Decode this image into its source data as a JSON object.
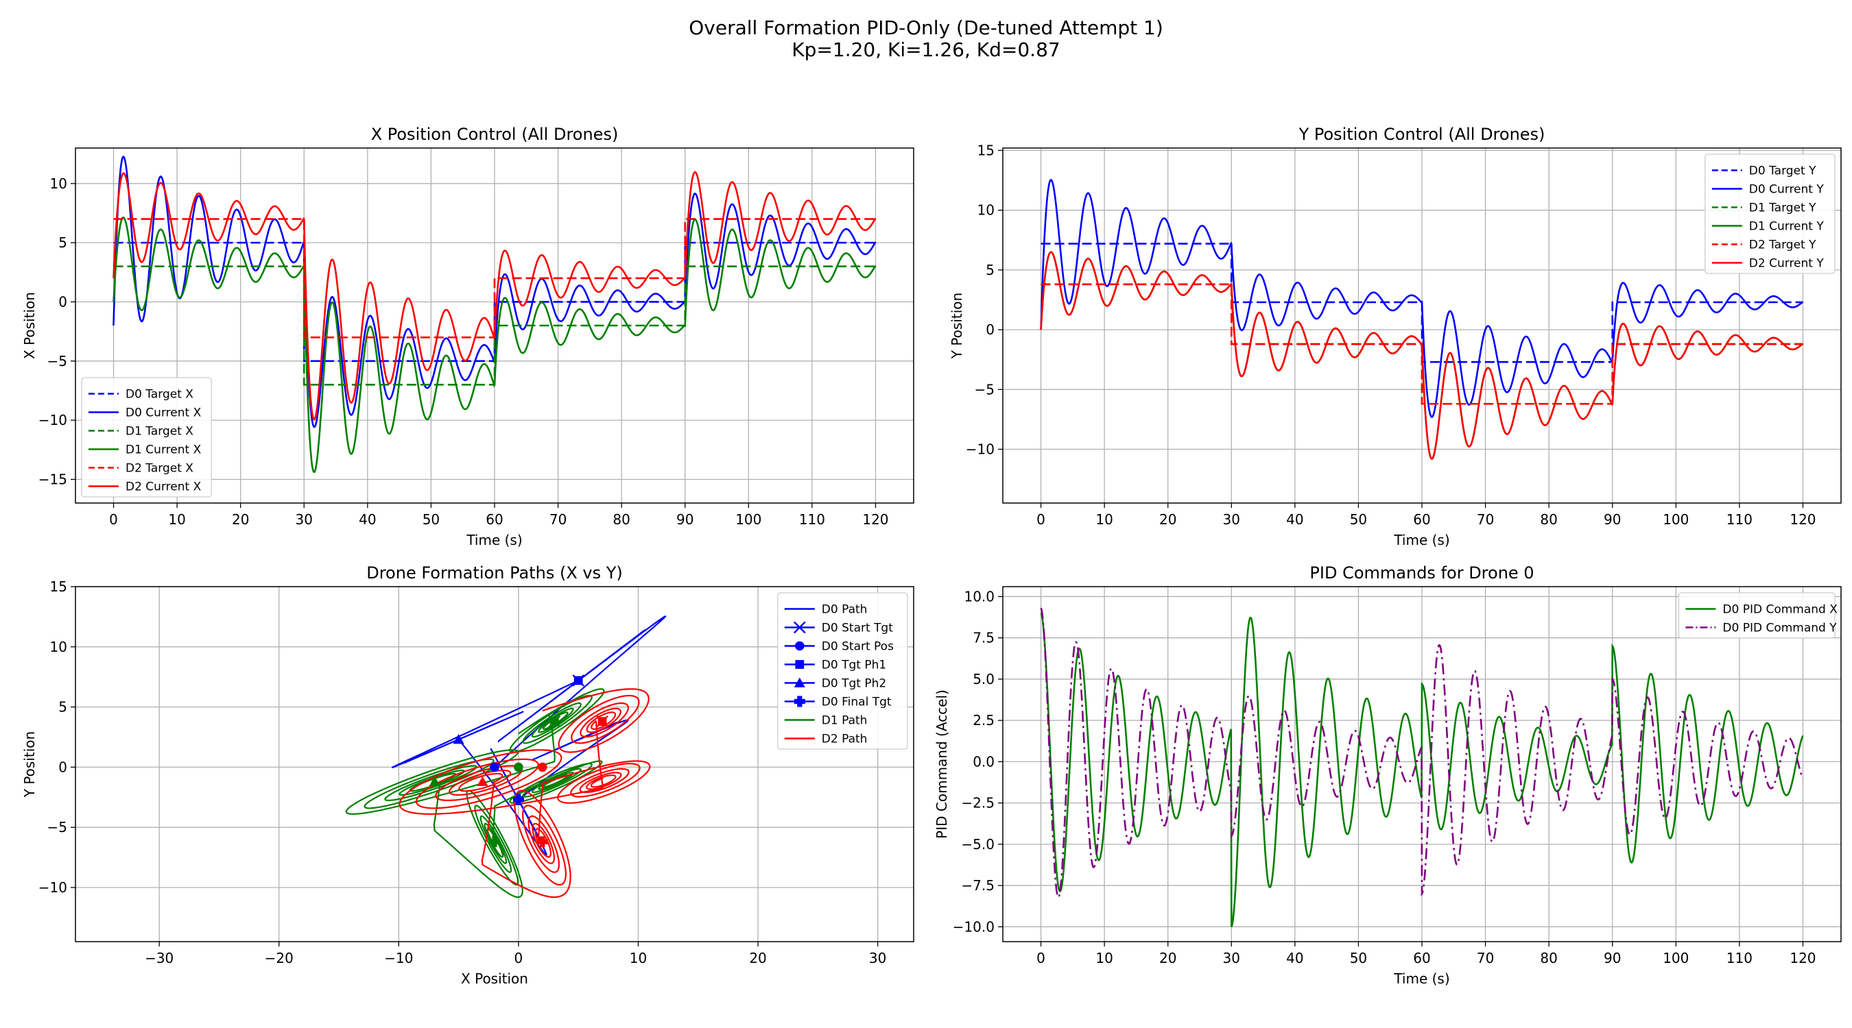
{
  "figure": {
    "title_line1": "Overall Formation PID-Only (De-tuned Attempt 1)",
    "title_line2": "Kp=1.20, Ki=1.26, Kd=0.87"
  },
  "chart_data": [
    {
      "id": "x",
      "type": "line",
      "title": "X Position Control (All Drones)",
      "xlabel": "Time (s)",
      "ylabel": "X Position",
      "xlim": [
        -6,
        126
      ],
      "ylim": [
        -17,
        13
      ],
      "xticks": [
        0,
        10,
        20,
        30,
        40,
        50,
        60,
        70,
        80,
        90,
        100,
        110,
        120
      ],
      "yticks": [
        -15,
        -10,
        -5,
        0,
        5,
        10
      ],
      "grid": true,
      "legend_position": "lower-left",
      "series": [
        {
          "name": "D0 Target X",
          "color": "#0000ff",
          "style": "dashed",
          "kind": "step",
          "segments": [
            [
              0,
              30,
              5
            ],
            [
              30,
              60,
              -5
            ],
            [
              60,
              90,
              0
            ],
            [
              90,
              120,
              5
            ]
          ]
        },
        {
          "name": "D0 Current X",
          "color": "#0000ff",
          "style": "solid",
          "kind": "response",
          "start": -2,
          "phases": [
            {
              "t0": 0,
              "amp": 8.6,
              "base": 5
            },
            {
              "t0": 30,
              "amp": 7,
              "base": -5
            },
            {
              "t0": 60,
              "amp": 3,
              "base": 0
            },
            {
              "t0": 90,
              "amp": 5,
              "base": 5
            }
          ]
        },
        {
          "name": "D1 Target X",
          "color": "#008000",
          "style": "dashed",
          "kind": "step",
          "segments": [
            [
              0,
              30,
              3
            ],
            [
              30,
              60,
              -7
            ],
            [
              60,
              90,
              -2
            ],
            [
              90,
              120,
              3
            ]
          ]
        },
        {
          "name": "D1 Current X",
          "color": "#008000",
          "style": "solid",
          "kind": "response",
          "start": 0,
          "phases": [
            {
              "t0": 0,
              "amp": 4.8,
              "base": 3
            },
            {
              "t0": 30,
              "amp": 9,
              "base": -7
            },
            {
              "t0": 60,
              "amp": 3,
              "base": -2
            },
            {
              "t0": 90,
              "amp": 4.8,
              "base": 3
            }
          ]
        },
        {
          "name": "D2 Target X",
          "color": "#ff0000",
          "style": "dashed",
          "kind": "step",
          "segments": [
            [
              0,
              30,
              7
            ],
            [
              30,
              60,
              -3
            ],
            [
              60,
              90,
              2
            ],
            [
              90,
              120,
              7
            ]
          ]
        },
        {
          "name": "D2 Current X",
          "color": "#ff0000",
          "style": "solid",
          "kind": "response",
          "start": 2,
          "phases": [
            {
              "t0": 0,
              "amp": 4.7,
              "base": 7
            },
            {
              "t0": 30,
              "amp": 8.5,
              "base": -3
            },
            {
              "t0": 60,
              "amp": 3,
              "base": 2
            },
            {
              "t0": 90,
              "amp": 4.8,
              "base": 7
            }
          ]
        }
      ]
    },
    {
      "id": "y",
      "type": "line",
      "title": "Y Position Control (All Drones)",
      "xlabel": "Time (s)",
      "ylabel": "Y Position",
      "xlim": [
        -6,
        126
      ],
      "ylim": [
        -14.5,
        15.2
      ],
      "xticks": [
        0,
        10,
        20,
        30,
        40,
        50,
        60,
        70,
        80,
        90,
        100,
        110,
        120
      ],
      "yticks": [
        -10,
        -5,
        0,
        5,
        10,
        15
      ],
      "grid": true,
      "legend_position": "upper-right",
      "series": [
        {
          "name": "D0 Target Y",
          "color": "#0000ff",
          "style": "dashed",
          "kind": "step",
          "segments": [
            [
              0,
              30,
              7.2
            ],
            [
              30,
              60,
              2.3
            ],
            [
              60,
              90,
              -2.7
            ],
            [
              90,
              120,
              2.3
            ]
          ]
        },
        {
          "name": "D0 Current Y",
          "color": "#0000ff",
          "style": "solid",
          "kind": "response",
          "start": 0,
          "phases": [
            {
              "t0": 0,
              "amp": 6.5,
              "base": 7.2
            },
            {
              "t0": 30,
              "amp": 3,
              "base": 2.3
            },
            {
              "t0": 60,
              "amp": 5.5,
              "base": -2.7
            },
            {
              "t0": 90,
              "amp": 2.2,
              "base": 2.3
            }
          ]
        },
        {
          "name": "D1 Target Y",
          "color": "#008000",
          "style": "dashed",
          "kind": "step",
          "segments": [
            [
              0,
              30,
              3.8
            ],
            [
              30,
              60,
              -1.2
            ],
            [
              60,
              90,
              -6.2
            ],
            [
              90,
              120,
              -1.2
            ]
          ]
        },
        {
          "name": "D1 Current Y",
          "color": "#008000",
          "style": "solid",
          "kind": "response",
          "start": 0,
          "phases": [
            {
              "t0": 0,
              "amp": 3.3,
              "base": 3.8
            },
            {
              "t0": 30,
              "amp": 3.4,
              "base": -1.2
            },
            {
              "t0": 60,
              "amp": 5.5,
              "base": -6.2
            },
            {
              "t0": 90,
              "amp": 2.3,
              "base": -1.2
            }
          ]
        },
        {
          "name": "D2 Target Y",
          "color": "#ff0000",
          "style": "dashed",
          "kind": "step",
          "segments": [
            [
              0,
              30,
              3.8
            ],
            [
              30,
              60,
              -1.2
            ],
            [
              60,
              90,
              -6.2
            ],
            [
              90,
              120,
              -1.2
            ]
          ]
        },
        {
          "name": "D2 Current Y",
          "color": "#ff0000",
          "style": "solid",
          "kind": "response",
          "start": 0,
          "phases": [
            {
              "t0": 0,
              "amp": 3.3,
              "base": 3.8
            },
            {
              "t0": 30,
              "amp": 3.4,
              "base": -1.2
            },
            {
              "t0": 60,
              "amp": 5.5,
              "base": -6.2
            },
            {
              "t0": 90,
              "amp": 2.3,
              "base": -1.2
            }
          ]
        }
      ]
    },
    {
      "id": "xy",
      "type": "line",
      "title": "Drone Formation Paths (X vs Y)",
      "xlabel": "X Position",
      "ylabel": "Y Position",
      "xlim": [
        -37,
        33
      ],
      "ylim": [
        -14.5,
        15
      ],
      "xticks": [
        -30,
        -20,
        -10,
        0,
        10,
        20,
        30
      ],
      "yticks": [
        -10,
        -5,
        0,
        5,
        10,
        15
      ],
      "grid": true,
      "legend_position": "upper-right",
      "series": [
        {
          "name": "D0 Path",
          "color": "#0000ff",
          "style": "solid",
          "kind": "path",
          "xcurve": 0,
          "ycurve": 1
        },
        {
          "name": "D1 Path",
          "color": "#008000",
          "style": "solid",
          "kind": "path",
          "xcurve": 2,
          "ycurve": 3
        },
        {
          "name": "D2 Path",
          "color": "#ff0000",
          "style": "solid",
          "kind": "path",
          "xcurve": 4,
          "ycurve": 5
        }
      ],
      "markers": [
        {
          "name": "D0 Start Tgt",
          "marker": "x",
          "points": [
            {
              "color": "#0000ff",
              "x": 5,
              "y": 7.2
            },
            {
              "color": "#008000",
              "x": 3,
              "y": 3.8
            },
            {
              "color": "#ff0000",
              "x": 7,
              "y": 3.8
            }
          ]
        },
        {
          "name": "D0 Start Pos",
          "marker": "circle",
          "points": [
            {
              "color": "#0000ff",
              "x": -2,
              "y": 0
            },
            {
              "color": "#008000",
              "x": 0,
              "y": 0
            },
            {
              "color": "#ff0000",
              "x": 2,
              "y": 0
            }
          ]
        },
        {
          "name": "D0 Tgt Ph1",
          "marker": "square",
          "points": [
            {
              "color": "#0000ff",
              "x": 5,
              "y": 7.2
            },
            {
              "color": "#008000",
              "x": 3,
              "y": 3.8
            },
            {
              "color": "#ff0000",
              "x": 7,
              "y": 3.8
            }
          ]
        },
        {
          "name": "D0 Tgt Ph2",
          "marker": "triangle",
          "points": [
            {
              "color": "#0000ff",
              "x": -5,
              "y": 2.3
            },
            {
              "color": "#008000",
              "x": -7,
              "y": -1.2
            },
            {
              "color": "#ff0000",
              "x": -3,
              "y": -1.2
            }
          ]
        },
        {
          "name": "D0 Final Tgt",
          "marker": "plus",
          "points": [
            {
              "color": "#0000ff",
              "x": 0,
              "y": -2.7
            },
            {
              "color": "#008000",
              "x": -2,
              "y": -6.2
            },
            {
              "color": "#ff0000",
              "x": 2,
              "y": -6.2
            }
          ]
        }
      ]
    },
    {
      "id": "pid",
      "type": "line",
      "title": "PID Commands for Drone 0",
      "xlabel": "Time (s)",
      "ylabel": "PID Command (Accel)",
      "xlim": [
        -6,
        126
      ],
      "ylim": [
        -10.9,
        10.6
      ],
      "xticks": [
        0,
        10,
        20,
        30,
        40,
        50,
        60,
        70,
        80,
        90,
        100,
        110,
        120
      ],
      "yticks": [
        -10.0,
        -7.5,
        -5.0,
        -2.5,
        0.0,
        2.5,
        5.0,
        7.5,
        10.0
      ],
      "grid": true,
      "legend_position": "upper-right",
      "series": [
        {
          "name": "D0 PID Command X",
          "color": "#008000",
          "style": "solid",
          "kind": "command",
          "start": 9,
          "omega": 1.03,
          "phases": [
            {
              "t0": 0,
              "amp": 9
            },
            {
              "t0": 30,
              "amp": -10
            },
            {
              "t0": 60,
              "amp": 4.7
            },
            {
              "t0": 90,
              "amp": 7
            }
          ]
        },
        {
          "name": "D0 PID Command Y",
          "color": "#800080",
          "style": "dashdot",
          "kind": "command",
          "start": 9.3,
          "omega": 1.13,
          "phases": [
            {
              "t0": 0,
              "amp": 9.3
            },
            {
              "t0": 30,
              "amp": -4.5
            },
            {
              "t0": 60,
              "amp": -8
            },
            {
              "t0": 90,
              "amp": 5
            }
          ]
        }
      ]
    }
  ]
}
